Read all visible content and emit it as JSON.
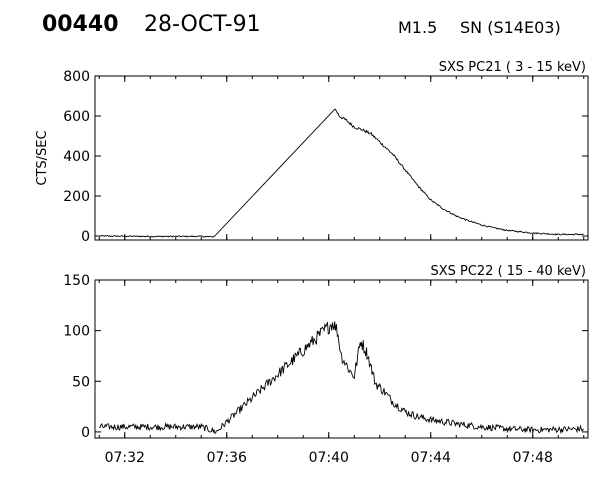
{
  "header": {
    "event_id": "00440",
    "date": "28-OCT-91",
    "goes_class": "M1.5",
    "location": "SN (S14E03)"
  },
  "chart_data": [
    {
      "type": "line",
      "title": "SXS PC21  (  3 - 15 keV)",
      "ylabel": "CTS/SEC",
      "xlabel": "",
      "x_ticks": [
        "07:32",
        "07:36",
        "07:40",
        "07:44",
        "07:48"
      ],
      "xlim": [
        "07:30:50",
        "07:50:10"
      ],
      "ylim": [
        -20,
        800
      ],
      "y_ticks": [
        0,
        200,
        400,
        600,
        800
      ],
      "grid": false,
      "series": [
        {
          "noise": 3,
          "points": [
            [
              "07:31:00",
              0
            ],
            [
              "07:33:00",
              -2
            ],
            [
              "07:35:00",
              -2
            ],
            [
              "07:35:30",
              -4
            ],
            [
              "07:40:14",
              638
            ],
            [
              "07:40:25",
              600
            ],
            [
              "07:40:40",
              580
            ],
            [
              "07:41:00",
              545
            ],
            [
              "07:41:20",
              530
            ],
            [
              "07:41:40",
              510
            ],
            [
              "07:42:00",
              470
            ],
            [
              "07:42:30",
              410
            ],
            [
              "07:43:00",
              330
            ],
            [
              "07:43:30",
              250
            ],
            [
              "07:44:00",
              180
            ],
            [
              "07:44:30",
              135
            ],
            [
              "07:45:00",
              100
            ],
            [
              "07:45:30",
              75
            ],
            [
              "07:46:00",
              55
            ],
            [
              "07:46:30",
              40
            ],
            [
              "07:47:00",
              28
            ],
            [
              "07:48:00",
              15
            ],
            [
              "07:49:00",
              8
            ],
            [
              "07:50:00",
              8
            ]
          ]
        }
      ]
    },
    {
      "type": "line",
      "title": "SXS PC22  ( 15 - 40 keV)",
      "ylabel": "",
      "xlabel": "",
      "x_ticks": [
        "07:32",
        "07:36",
        "07:40",
        "07:44",
        "07:48"
      ],
      "xlim": [
        "07:30:50",
        "07:50:10"
      ],
      "ylim": [
        -6,
        150
      ],
      "y_ticks": [
        0,
        50,
        100,
        150
      ],
      "grid": false,
      "series": [
        {
          "noise": 3,
          "points": [
            [
              "07:31:00",
              5
            ],
            [
              "07:33:00",
              5
            ],
            [
              "07:35:00",
              5
            ],
            [
              "07:35:35",
              0
            ],
            [
              "07:40:10",
              108
            ],
            [
              "07:40:20",
              100
            ],
            [
              "07:40:30",
              75
            ],
            [
              "07:40:50",
              60
            ],
            [
              "07:41:00",
              55
            ],
            [
              "07:41:15",
              90
            ],
            [
              "07:41:30",
              78
            ],
            [
              "07:41:50",
              48
            ],
            [
              "07:42:10",
              40
            ],
            [
              "07:42:30",
              30
            ],
            [
              "07:43:00",
              20
            ],
            [
              "07:43:30",
              15
            ],
            [
              "07:44:00",
              12
            ],
            [
              "07:45:00",
              8
            ],
            [
              "07:46:00",
              5
            ],
            [
              "07:47:00",
              3
            ],
            [
              "07:48:00",
              2
            ],
            [
              "07:50:00",
              3
            ]
          ]
        }
      ]
    }
  ]
}
